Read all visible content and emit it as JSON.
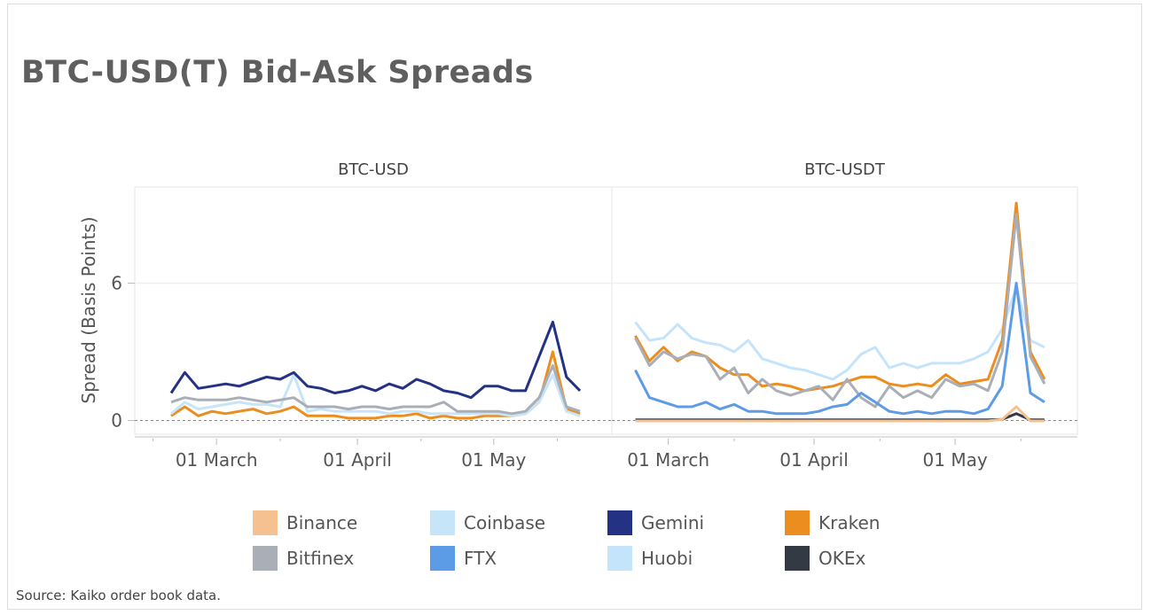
{
  "title": "BTC-USD(T) Bid-Ask Spreads",
  "source": "Source: Kaiko order book data.",
  "colors": {
    "Binance": "#f6c190",
    "Coinbase": "#c7e5f8",
    "Gemini": "#243283",
    "Kraken": "#ec8d1f",
    "Bitfinex": "#aaaeb7",
    "FTX": "#5c9ce7",
    "Huobi": "#c4e4fb",
    "OKEx": "#333a43"
  },
  "legend": [
    "Binance",
    "Coinbase",
    "Gemini",
    "Kraken",
    "Bitfinex",
    "FTX",
    "Huobi",
    "OKEx"
  ],
  "chart_data": [
    {
      "type": "line",
      "title": "BTC-USD",
      "ylabel": "Spread (Basis Points)",
      "ylim": [
        -0.6,
        10.2
      ],
      "yticks": [
        "0",
        "6"
      ],
      "xticks": [
        "01 March",
        "01 April",
        "01 May"
      ],
      "grid": true,
      "x": [
        "Feb 19",
        "Feb 22",
        "Feb 25",
        "Feb 28",
        "Mar 3",
        "Mar 6",
        "Mar 9",
        "Mar 12",
        "Mar 15",
        "Mar 18",
        "Mar 21",
        "Mar 24",
        "Mar 27",
        "Mar 30",
        "Apr 2",
        "Apr 5",
        "Apr 8",
        "Apr 11",
        "Apr 14",
        "Apr 17",
        "Apr 20",
        "Apr 23",
        "Apr 26",
        "Apr 29",
        "May 2",
        "May 5",
        "May 8",
        "May 11",
        "May 14",
        "May 17",
        "May 20"
      ],
      "series": [
        {
          "name": "Kraken",
          "values": [
            0.2,
            0.6,
            0.2,
            0.4,
            0.3,
            0.4,
            0.5,
            0.3,
            0.4,
            0.6,
            0.2,
            0.2,
            0.2,
            0.1,
            0.1,
            0.1,
            0.2,
            0.2,
            0.3,
            0.1,
            0.2,
            0.1,
            0.1,
            0.2,
            0.2,
            0.2,
            0.3,
            0.8,
            3.0,
            0.5,
            0.3
          ]
        },
        {
          "name": "Coinbase",
          "values": [
            0.3,
            0.8,
            0.5,
            0.6,
            0.7,
            0.8,
            0.7,
            0.7,
            0.6,
            2.0,
            0.4,
            0.5,
            0.4,
            0.4,
            0.4,
            0.4,
            0.3,
            0.4,
            0.4,
            0.3,
            0.3,
            0.3,
            0.3,
            0.3,
            0.3,
            0.2,
            0.3,
            0.8,
            2.0,
            0.4,
            0.2
          ]
        },
        {
          "name": "Bitfinex",
          "values": [
            0.8,
            1.0,
            0.9,
            0.9,
            0.9,
            1.0,
            0.9,
            0.8,
            0.9,
            1.0,
            0.6,
            0.6,
            0.6,
            0.5,
            0.6,
            0.6,
            0.5,
            0.6,
            0.6,
            0.6,
            0.8,
            0.4,
            0.4,
            0.4,
            0.4,
            0.3,
            0.4,
            1.0,
            2.4,
            0.6,
            0.4
          ]
        },
        {
          "name": "Gemini",
          "values": [
            1.2,
            2.1,
            1.4,
            1.5,
            1.6,
            1.5,
            1.7,
            1.9,
            1.8,
            2.1,
            1.5,
            1.4,
            1.2,
            1.3,
            1.5,
            1.3,
            1.6,
            1.4,
            1.8,
            1.6,
            1.3,
            1.2,
            1.0,
            1.5,
            1.5,
            1.3,
            1.3,
            2.8,
            4.3,
            1.9,
            1.3
          ]
        }
      ]
    },
    {
      "type": "line",
      "title": "BTC-USDT",
      "ylim": [
        -0.6,
        10.2
      ],
      "xticks": [
        "01 March",
        "01 April",
        "01 May"
      ],
      "grid": true,
      "x": [
        "Feb 19",
        "Feb 22",
        "Feb 25",
        "Feb 28",
        "Mar 3",
        "Mar 6",
        "Mar 9",
        "Mar 12",
        "Mar 15",
        "Mar 18",
        "Mar 21",
        "Mar 24",
        "Mar 27",
        "Mar 30",
        "Apr 2",
        "Apr 5",
        "Apr 8",
        "Apr 11",
        "Apr 14",
        "Apr 17",
        "Apr 20",
        "Apr 23",
        "Apr 26",
        "Apr 29",
        "May 2",
        "May 5",
        "May 8",
        "May 11",
        "May 14",
        "May 17",
        "May 20"
      ],
      "series": [
        {
          "name": "Huobi",
          "values": [
            null,
            4.3,
            3.5,
            3.6,
            4.2,
            3.6,
            3.4,
            3.3,
            3.0,
            3.5,
            2.7,
            2.5,
            2.3,
            2.2,
            2.0,
            1.8,
            2.2,
            2.9,
            3.2,
            2.3,
            2.5,
            2.3,
            2.5,
            2.5,
            2.5,
            2.7,
            3.0,
            4.0,
            5.8,
            3.5,
            3.2
          ]
        },
        {
          "name": "Kraken",
          "values": [
            null,
            3.7,
            2.6,
            3.2,
            2.6,
            3.0,
            2.8,
            2.3,
            2.0,
            2.0,
            1.5,
            1.6,
            1.5,
            1.3,
            1.4,
            1.5,
            1.7,
            1.9,
            1.9,
            1.6,
            1.5,
            1.6,
            1.5,
            2.0,
            1.6,
            1.7,
            1.8,
            3.5,
            9.5,
            3.0,
            1.8
          ]
        },
        {
          "name": "Bitfinex",
          "values": [
            null,
            3.6,
            2.4,
            3.0,
            2.7,
            2.9,
            2.8,
            1.8,
            2.3,
            1.2,
            1.8,
            1.3,
            1.1,
            1.3,
            1.5,
            0.9,
            1.8,
            1.0,
            0.6,
            1.5,
            1.0,
            1.3,
            1.0,
            1.8,
            1.5,
            1.6,
            1.3,
            3.0,
            9.0,
            2.8,
            1.6
          ]
        },
        {
          "name": "FTX",
          "values": [
            null,
            2.2,
            1.0,
            0.8,
            0.6,
            0.6,
            0.8,
            0.5,
            0.7,
            0.4,
            0.4,
            0.3,
            0.3,
            0.3,
            0.4,
            0.6,
            0.7,
            1.2,
            0.8,
            0.4,
            0.3,
            0.4,
            0.3,
            0.4,
            0.4,
            0.3,
            0.5,
            1.5,
            6.0,
            1.2,
            0.8
          ]
        },
        {
          "name": "OKEx",
          "values": [
            null,
            0.03,
            0.03,
            0.03,
            0.03,
            0.03,
            0.03,
            0.03,
            0.03,
            0.03,
            0.03,
            0.03,
            0.03,
            0.03,
            0.03,
            0.03,
            0.03,
            0.03,
            0.03,
            0.03,
            0.03,
            0.03,
            0.03,
            0.03,
            0.03,
            0.03,
            0.03,
            0.05,
            0.3,
            0.03,
            0.03
          ]
        },
        {
          "name": "Binance",
          "values": [
            null,
            -0.02,
            -0.02,
            -0.02,
            -0.02,
            -0.02,
            -0.02,
            -0.02,
            -0.02,
            -0.02,
            -0.02,
            -0.02,
            -0.02,
            -0.02,
            -0.02,
            -0.02,
            -0.02,
            -0.02,
            -0.02,
            -0.02,
            -0.02,
            -0.02,
            -0.02,
            -0.02,
            -0.02,
            -0.02,
            -0.02,
            0.05,
            0.6,
            -0.02,
            -0.02
          ]
        }
      ]
    }
  ]
}
